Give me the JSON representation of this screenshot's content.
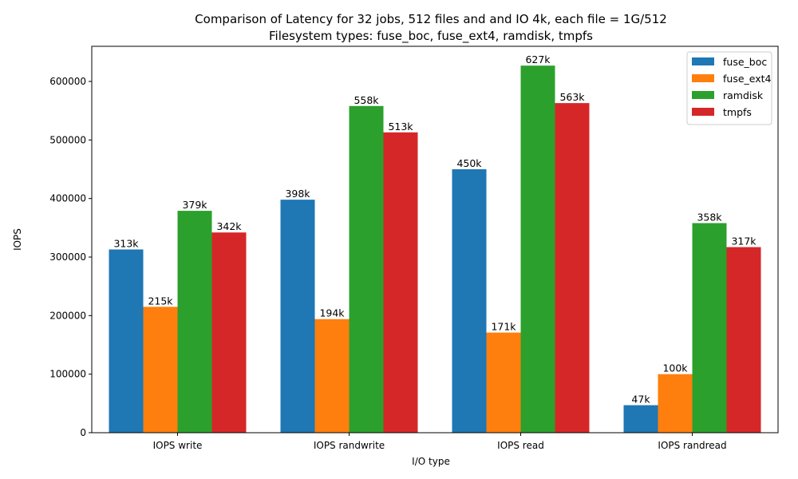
{
  "chart_data": {
    "type": "bar",
    "title": "Comparison of Latency for 32 jobs, 512 files and  and IO 4k, each file = 1G/512",
    "subtitle": "Filesystem types: fuse_boc, fuse_ext4, ramdisk, tmpfs",
    "xlabel": "I/O type",
    "ylabel": "IOPS",
    "categories": [
      "IOPS write",
      "IOPS randwrite",
      "IOPS read",
      "IOPS randread"
    ],
    "ylim": [
      0,
      660000
    ],
    "yticks": [
      0,
      100000,
      200000,
      300000,
      400000,
      500000,
      600000
    ],
    "ytick_labels": [
      "0",
      "100000",
      "200000",
      "300000",
      "400000",
      "500000",
      "600000"
    ],
    "grid": false,
    "legend_position": "top-right",
    "series": [
      {
        "name": "fuse_boc",
        "color": "#1f77b4",
        "values": [
          313000,
          398000,
          450000,
          47000
        ],
        "labels": [
          "313k",
          "398k",
          "450k",
          "47k"
        ]
      },
      {
        "name": "fuse_ext4",
        "color": "#ff7f0e",
        "values": [
          215000,
          194000,
          171000,
          100000
        ],
        "labels": [
          "215k",
          "194k",
          "171k",
          "100k"
        ]
      },
      {
        "name": "ramdisk",
        "color": "#2ca02c",
        "values": [
          379000,
          558000,
          627000,
          358000
        ],
        "labels": [
          "379k",
          "558k",
          "627k",
          "358k"
        ]
      },
      {
        "name": "tmpfs",
        "color": "#d62728",
        "values": [
          342000,
          513000,
          563000,
          317000
        ],
        "labels": [
          "342k",
          "513k",
          "563k",
          "317k"
        ]
      }
    ]
  }
}
